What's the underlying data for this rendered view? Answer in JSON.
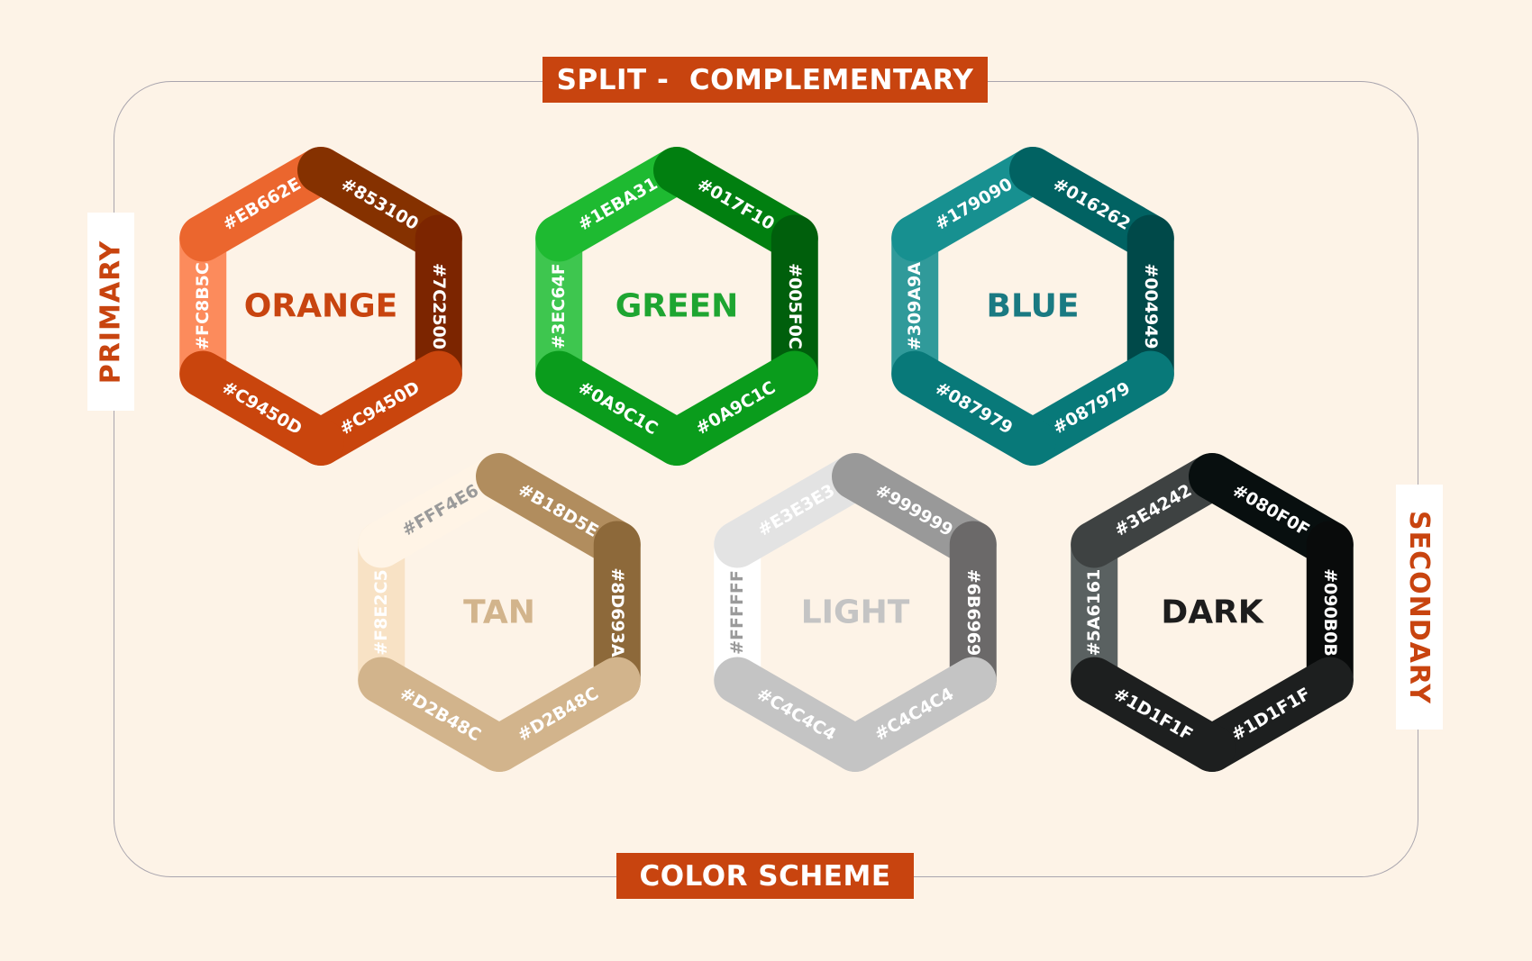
{
  "title": "SPLIT -  COMPLEMENTARY",
  "footer": "COLOR SCHEME",
  "side_labels": {
    "primary": "PRIMARY",
    "secondary": "SECONDARY"
  },
  "colors": {
    "accent": "#C8440F",
    "background": "#FDF3E7",
    "frame": "#A9A5AE"
  },
  "wheels": [
    {
      "name": "ORANGE",
      "name_color": "#C8440F",
      "label_color": "#FFFFFF",
      "segments": [
        {
          "label": "#FC8B5C",
          "color": "#FC8B5C"
        },
        {
          "label": "#EB662E",
          "color": "#EB662E"
        },
        {
          "label": "#853100",
          "color": "#853100"
        },
        {
          "label": "#7C2500",
          "color": "#7C2500"
        },
        {
          "label": "#C9450D",
          "color": "#C9450D"
        },
        {
          "label": "#C9450D",
          "color": "#C9450D"
        }
      ]
    },
    {
      "name": "GREEN",
      "name_color": "#1EA531",
      "label_color": "#FFFFFF",
      "segments": [
        {
          "label": "#3EC64F",
          "color": "#3EC64F"
        },
        {
          "label": "#1EBA31",
          "color": "#1EBA31"
        },
        {
          "label": "#017F10",
          "color": "#017F10"
        },
        {
          "label": "#005F0C",
          "color": "#005F0C"
        },
        {
          "label": "#0A9C1C",
          "color": "#0A9C1C"
        },
        {
          "label": "#0A9C1C",
          "color": "#0A9C1C"
        }
      ]
    },
    {
      "name": "BLUE",
      "name_color": "#1A7A82",
      "label_color": "#FFFFFF",
      "segments": [
        {
          "label": "#309A9A",
          "color": "#309A9A"
        },
        {
          "label": "#179090",
          "color": "#179090"
        },
        {
          "label": "#016262",
          "color": "#016262"
        },
        {
          "label": "#004949",
          "color": "#004949"
        },
        {
          "label": "#087979",
          "color": "#087979"
        },
        {
          "label": "#087979",
          "color": "#087979"
        }
      ]
    },
    {
      "name": "TAN",
      "name_color": "#D2B48C",
      "label_color": "#FFFFFF",
      "segments": [
        {
          "label": "#F8E2C5",
          "color": "#F8E2C5"
        },
        {
          "label": "#FFF4E6",
          "color": "#FFF4E6",
          "label_color": "#9A9A9A"
        },
        {
          "label": "#B18D5E",
          "color": "#B18D5E"
        },
        {
          "label": "#8D693A",
          "color": "#8D693A"
        },
        {
          "label": "#D2B48C",
          "color": "#D2B48C"
        },
        {
          "label": "#D2B48C",
          "color": "#D2B48C"
        }
      ]
    },
    {
      "name": "LIGHT",
      "name_color": "#C4C4C4",
      "label_color": "#FFFFFF",
      "segments": [
        {
          "label": "#FFFFFF",
          "color": "#FFFFFF",
          "label_color": "#9A9A9A"
        },
        {
          "label": "#E3E3E3",
          "color": "#E3E3E3"
        },
        {
          "label": "#999999",
          "color": "#999999"
        },
        {
          "label": "#6B6969",
          "color": "#6B6969"
        },
        {
          "label": "#C4C4C4",
          "color": "#C4C4C4"
        },
        {
          "label": "#C4C4C4",
          "color": "#C4C4C4"
        }
      ]
    },
    {
      "name": "DARK",
      "name_color": "#1D1D1D",
      "label_color": "#FFFFFF",
      "segments": [
        {
          "label": "#5A6161",
          "color": "#5A6161"
        },
        {
          "label": "#3E4242",
          "color": "#3E4242"
        },
        {
          "label": "#080F0F",
          "color": "#080F0F"
        },
        {
          "label": "#090B0B",
          "color": "#090B0B"
        },
        {
          "label": "#1D1F1F",
          "color": "#1D1F1F"
        },
        {
          "label": "#1D1F1F",
          "color": "#1D1F1F"
        }
      ]
    }
  ]
}
